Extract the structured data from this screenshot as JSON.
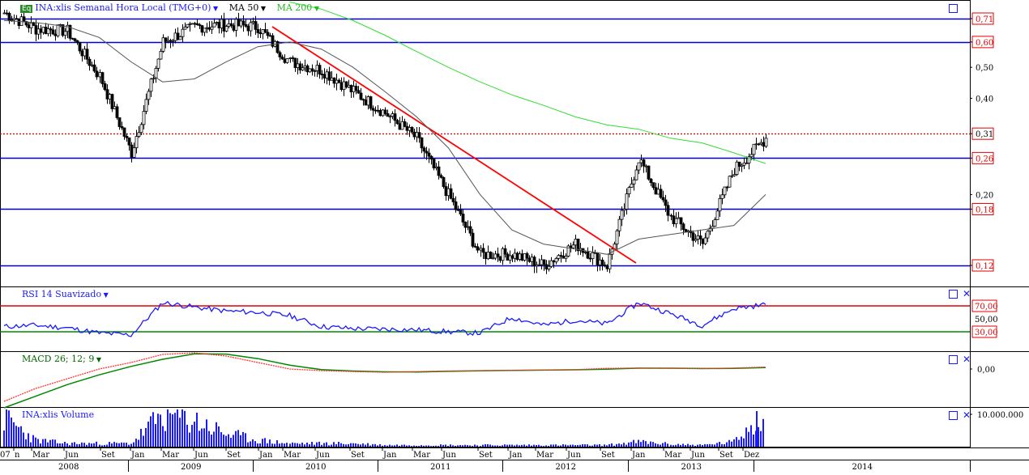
{
  "main": {
    "badge": "Eq",
    "title": "INA:xlis Semanal Hora Local (TMG+0)",
    "ma50_label": "MA 50",
    "ma200_label": "MA 200",
    "right_labels": [
      {
        "value": "0,71",
        "boxed": true,
        "color": "#e00000"
      },
      {
        "value": "0,60",
        "boxed": true,
        "color": "#e00000"
      },
      {
        "value": "0,50",
        "boxed": false,
        "color": "#000000"
      },
      {
        "value": "0,40",
        "boxed": false,
        "color": "#000000"
      },
      {
        "value": "0,31",
        "boxed": true,
        "color": "#000000"
      },
      {
        "value": "0,26",
        "boxed": true,
        "color": "#e00000"
      },
      {
        "value": "0,20",
        "boxed": false,
        "color": "#000000"
      },
      {
        "value": "0,18",
        "boxed": true,
        "color": "#e00000"
      },
      {
        "value": "0,12",
        "boxed": true,
        "color": "#e00000"
      }
    ]
  },
  "rsi": {
    "title": "RSI 14 Suavizado",
    "labels": [
      {
        "value": "70,00",
        "boxed": true,
        "color": "#e00000"
      },
      {
        "value": "50,00",
        "boxed": false,
        "color": "#000000"
      },
      {
        "value": "30,00",
        "boxed": true,
        "color": "#e00000"
      }
    ]
  },
  "macd": {
    "title": "MACD 26; 12; 9",
    "label": "0,00"
  },
  "volume": {
    "title": "INA:xlis Volume",
    "label": "10.000.000"
  },
  "x_axis": {
    "months": [
      "07",
      "n",
      "Mar",
      "Jun",
      "Set",
      "Jan",
      "Mar",
      "Jun",
      "Set",
      "Jan",
      "Mar",
      "Jun",
      "Set",
      "Jan",
      "Mar",
      "Jun",
      "Set",
      "Jan",
      "Mar",
      "Jun",
      "Set",
      "Jan",
      "Mar",
      "Jun",
      "Set",
      "Dez"
    ],
    "years": [
      "2008",
      "2009",
      "2010",
      "2011",
      "2012",
      "2013",
      "2014"
    ]
  },
  "colors": {
    "accent": "#1a1aff",
    "hline": "#0000cc",
    "trend": "#ff0000",
    "ma50": "#555555",
    "ma200": "#33dd33",
    "rsi_line": "#1a1aff",
    "rsi_high": "#e00000",
    "rsi_low": "#008800",
    "macd_fast": "#ff3333",
    "macd_slow": "#008800",
    "volume": "#1a1aff",
    "candle_up": "#000000",
    "candle_down": "#e00000"
  },
  "chart_data": [
    {
      "type": "candlestick",
      "title": "INA:xlis Semanal Hora Local (TMG+0)",
      "scale": "log",
      "ylim": [
        0.105,
        0.78
      ],
      "x": [
        "2008-01",
        "2008-03",
        "2008-06",
        "2008-09",
        "2009-01",
        "2009-03",
        "2009-06",
        "2009-09",
        "2010-01",
        "2010-03",
        "2010-06",
        "2010-09",
        "2011-01",
        "2011-03",
        "2011-06",
        "2011-09",
        "2012-01",
        "2012-03",
        "2012-06",
        "2012-09",
        "2013-01",
        "2013-03",
        "2013-06",
        "2013-09",
        "2013-12"
      ],
      "close": [
        0.74,
        0.66,
        0.65,
        0.47,
        0.27,
        0.6,
        0.67,
        0.68,
        0.67,
        0.52,
        0.49,
        0.42,
        0.36,
        0.3,
        0.2,
        0.13,
        0.13,
        0.12,
        0.14,
        0.12,
        0.26,
        0.17,
        0.14,
        0.24,
        0.3
      ],
      "horizontal_levels": [
        0.71,
        0.6,
        0.26,
        0.18,
        0.12
      ],
      "current_price": 0.31,
      "trendline": {
        "from": [
          "2010-01",
          0.67
        ],
        "to": [
          "2012-10",
          0.12
        ]
      },
      "series": [
        {
          "name": "MA 50",
          "values": [
            0.7,
            0.69,
            0.67,
            0.62,
            0.52,
            0.45,
            0.46,
            0.52,
            0.58,
            0.6,
            0.57,
            0.5,
            0.42,
            0.35,
            0.28,
            0.2,
            0.155,
            0.14,
            0.135,
            0.13,
            0.145,
            0.15,
            0.155,
            0.16,
            0.2
          ]
        },
        {
          "name": "MA 200",
          "values": [
            null,
            null,
            null,
            null,
            null,
            null,
            null,
            null,
            null,
            0.8,
            0.76,
            0.7,
            0.63,
            0.56,
            0.5,
            0.45,
            0.41,
            0.38,
            0.35,
            0.33,
            0.32,
            0.3,
            0.29,
            0.27,
            0.25
          ]
        }
      ]
    },
    {
      "type": "line",
      "title": "RSI 14 Suavizado",
      "ylim": [
        0,
        100
      ],
      "levels": [
        70,
        30
      ],
      "values": [
        38,
        40,
        36,
        28,
        25,
        75,
        68,
        62,
        60,
        55,
        38,
        35,
        34,
        33,
        30,
        28,
        52,
        40,
        48,
        42,
        75,
        58,
        40,
        66,
        72
      ]
    },
    {
      "type": "line",
      "title": "MACD 26; 12; 9",
      "values": [
        -0.1,
        -0.06,
        -0.03,
        0,
        0.02,
        0.045,
        0.05,
        0.04,
        0.02,
        0,
        -0.005,
        -0.008,
        -0.01,
        -0.008,
        -0.006,
        -0.005,
        -0.004,
        -0.003,
        -0.002,
        0.002,
        0.003,
        0.002,
        0.001,
        0.003,
        0.006
      ]
    },
    {
      "type": "bar",
      "title": "INA:xlis Volume",
      "values": [
        9,
        2,
        1,
        1,
        1,
        10,
        8,
        4,
        2,
        1,
        1,
        1,
        0.5,
        0.5,
        0.5,
        0.5,
        0.5,
        0.5,
        0.5,
        0.5,
        1.5,
        0.8,
        0.5,
        1.5,
        11
      ]
    }
  ]
}
